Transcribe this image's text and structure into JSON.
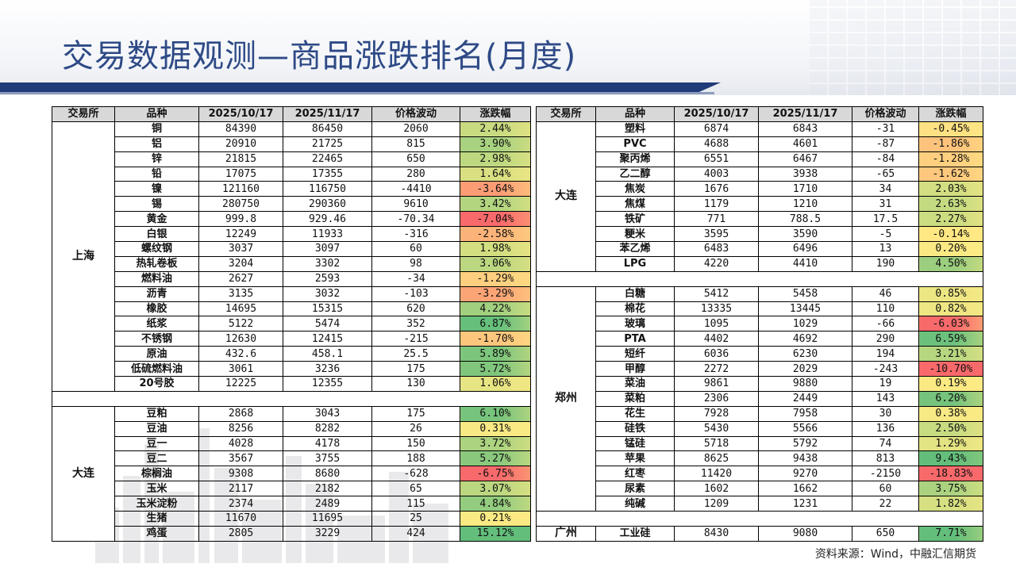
{
  "title": "交易数据观测—商品涨跌排名(月度)",
  "source": "资料来源：Wind，中融汇信期货",
  "colors": {
    "title": "#2e4a86",
    "bar": "#1f3b78",
    "header_bg": "#d8d8d8",
    "up": "#63be7b",
    "flat": "#ffeb84",
    "down": "#f8696b"
  },
  "headers": [
    "交易所",
    "品种",
    "2025/10/17",
    "2025/11/17",
    "价格波动",
    "涨跌幅"
  ],
  "left_groups": [
    {
      "exchange": "上海",
      "rows": [
        {
          "name": "铜",
          "d1": "84390",
          "d2": "86450",
          "chg": "2060",
          "pct": "2.44%",
          "v": 2.44
        },
        {
          "name": "铝",
          "d1": "20910",
          "d2": "21725",
          "chg": "815",
          "pct": "3.90%",
          "v": 3.9
        },
        {
          "name": "锌",
          "d1": "21815",
          "d2": "22465",
          "chg": "650",
          "pct": "2.98%",
          "v": 2.98
        },
        {
          "name": "铅",
          "d1": "17075",
          "d2": "17355",
          "chg": "280",
          "pct": "1.64%",
          "v": 1.64
        },
        {
          "name": "镍",
          "d1": "121160",
          "d2": "116750",
          "chg": "-4410",
          "pct": "-3.64%",
          "v": -3.64
        },
        {
          "name": "锡",
          "d1": "280750",
          "d2": "290360",
          "chg": "9610",
          "pct": "3.42%",
          "v": 3.42
        },
        {
          "name": "黄金",
          "d1": "999.8",
          "d2": "929.46",
          "chg": "-70.34",
          "pct": "-7.04%",
          "v": -7.04
        },
        {
          "name": "白银",
          "d1": "12249",
          "d2": "11933",
          "chg": "-316",
          "pct": "-2.58%",
          "v": -2.58
        },
        {
          "name": "螺纹钢",
          "d1": "3037",
          "d2": "3097",
          "chg": "60",
          "pct": "1.98%",
          "v": 1.98
        },
        {
          "name": "热轧卷板",
          "d1": "3204",
          "d2": "3302",
          "chg": "98",
          "pct": "3.06%",
          "v": 3.06
        },
        {
          "name": "燃料油",
          "d1": "2627",
          "d2": "2593",
          "chg": "-34",
          "pct": "-1.29%",
          "v": -1.29
        },
        {
          "name": "沥青",
          "d1": "3135",
          "d2": "3032",
          "chg": "-103",
          "pct": "-3.29%",
          "v": -3.29
        },
        {
          "name": "橡胶",
          "d1": "14695",
          "d2": "15315",
          "chg": "620",
          "pct": "4.22%",
          "v": 4.22
        },
        {
          "name": "纸浆",
          "d1": "5122",
          "d2": "5474",
          "chg": "352",
          "pct": "6.87%",
          "v": 6.87
        },
        {
          "name": "不锈钢",
          "d1": "12630",
          "d2": "12415",
          "chg": "-215",
          "pct": "-1.70%",
          "v": -1.7
        },
        {
          "name": "原油",
          "d1": "432.6",
          "d2": "458.1",
          "chg": "25.5",
          "pct": "5.89%",
          "v": 5.89
        },
        {
          "name": "低硫燃料油",
          "d1": "3061",
          "d2": "3236",
          "chg": "175",
          "pct": "5.72%",
          "v": 5.72
        },
        {
          "name": "20号胶",
          "d1": "12225",
          "d2": "12355",
          "chg": "130",
          "pct": "1.06%",
          "v": 1.06
        }
      ]
    },
    {
      "exchange": "大连",
      "rows": [
        {
          "name": "豆粕",
          "d1": "2868",
          "d2": "3043",
          "chg": "175",
          "pct": "6.10%",
          "v": 6.1
        },
        {
          "name": "豆油",
          "d1": "8256",
          "d2": "8282",
          "chg": "26",
          "pct": "0.31%",
          "v": 0.31
        },
        {
          "name": "豆一",
          "d1": "4028",
          "d2": "4178",
          "chg": "150",
          "pct": "3.72%",
          "v": 3.72
        },
        {
          "name": "豆二",
          "d1": "3567",
          "d2": "3755",
          "chg": "188",
          "pct": "5.27%",
          "v": 5.27
        },
        {
          "name": "棕榈油",
          "d1": "9308",
          "d2": "8680",
          "chg": "-628",
          "pct": "-6.75%",
          "v": -6.75
        },
        {
          "name": "玉米",
          "d1": "2117",
          "d2": "2182",
          "chg": "65",
          "pct": "3.07%",
          "v": 3.07
        },
        {
          "name": "玉米淀粉",
          "d1": "2374",
          "d2": "2489",
          "chg": "115",
          "pct": "4.84%",
          "v": 4.84
        },
        {
          "name": "生猪",
          "d1": "11670",
          "d2": "11695",
          "chg": "25",
          "pct": "0.21%",
          "v": 0.21
        },
        {
          "name": "鸡蛋",
          "d1": "2805",
          "d2": "3229",
          "chg": "424",
          "pct": "15.12%",
          "v": 15.12
        }
      ]
    }
  ],
  "right_groups": [
    {
      "exchange": "大连",
      "rows": [
        {
          "name": "塑料",
          "d1": "6874",
          "d2": "6843",
          "chg": "-31",
          "pct": "-0.45%",
          "v": -0.45
        },
        {
          "name": "PVC",
          "d1": "4688",
          "d2": "4601",
          "chg": "-87",
          "pct": "-1.86%",
          "v": -1.86
        },
        {
          "name": "聚丙烯",
          "d1": "6551",
          "d2": "6467",
          "chg": "-84",
          "pct": "-1.28%",
          "v": -1.28
        },
        {
          "name": "乙二醇",
          "d1": "4003",
          "d2": "3938",
          "chg": "-65",
          "pct": "-1.62%",
          "v": -1.62
        },
        {
          "name": "焦炭",
          "d1": "1676",
          "d2": "1710",
          "chg": "34",
          "pct": "2.03%",
          "v": 2.03
        },
        {
          "name": "焦煤",
          "d1": "1179",
          "d2": "1210",
          "chg": "31",
          "pct": "2.63%",
          "v": 2.63
        },
        {
          "name": "铁矿",
          "d1": "771",
          "d2": "788.5",
          "chg": "17.5",
          "pct": "2.27%",
          "v": 2.27
        },
        {
          "name": "粳米",
          "d1": "3595",
          "d2": "3590",
          "chg": "-5",
          "pct": "-0.14%",
          "v": -0.14
        },
        {
          "name": "苯乙烯",
          "d1": "6483",
          "d2": "6496",
          "chg": "13",
          "pct": "0.20%",
          "v": 0.2
        },
        {
          "name": "LPG",
          "d1": "4220",
          "d2": "4410",
          "chg": "190",
          "pct": "4.50%",
          "v": 4.5
        }
      ]
    },
    {
      "exchange": "郑州",
      "rows": [
        {
          "name": "白糖",
          "d1": "5412",
          "d2": "5458",
          "chg": "46",
          "pct": "0.85%",
          "v": 0.85
        },
        {
          "name": "棉花",
          "d1": "13335",
          "d2": "13445",
          "chg": "110",
          "pct": "0.82%",
          "v": 0.82
        },
        {
          "name": "玻璃",
          "d1": "1095",
          "d2": "1029",
          "chg": "-66",
          "pct": "-6.03%",
          "v": -6.03
        },
        {
          "name": "PTA",
          "d1": "4402",
          "d2": "4692",
          "chg": "290",
          "pct": "6.59%",
          "v": 6.59
        },
        {
          "name": "短纤",
          "d1": "6036",
          "d2": "6230",
          "chg": "194",
          "pct": "3.21%",
          "v": 3.21
        },
        {
          "name": "甲醇",
          "d1": "2272",
          "d2": "2029",
          "chg": "-243",
          "pct": "-10.70%",
          "v": -10.7
        },
        {
          "name": "菜油",
          "d1": "9861",
          "d2": "9880",
          "chg": "19",
          "pct": "0.19%",
          "v": 0.19
        },
        {
          "name": "菜粕",
          "d1": "2306",
          "d2": "2449",
          "chg": "143",
          "pct": "6.20%",
          "v": 6.2
        },
        {
          "name": "花生",
          "d1": "7928",
          "d2": "7958",
          "chg": "30",
          "pct": "0.38%",
          "v": 0.38
        },
        {
          "name": "硅铁",
          "d1": "5430",
          "d2": "5566",
          "chg": "136",
          "pct": "2.50%",
          "v": 2.5
        },
        {
          "name": "锰硅",
          "d1": "5718",
          "d2": "5792",
          "chg": "74",
          "pct": "1.29%",
          "v": 1.29
        },
        {
          "name": "苹果",
          "d1": "8625",
          "d2": "9438",
          "chg": "813",
          "pct": "9.43%",
          "v": 9.43
        },
        {
          "name": "红枣",
          "d1": "11420",
          "d2": "9270",
          "chg": "-2150",
          "pct": "-18.83%",
          "v": -18.83
        },
        {
          "name": "尿素",
          "d1": "1602",
          "d2": "1662",
          "chg": "60",
          "pct": "3.75%",
          "v": 3.75
        },
        {
          "name": "纯碱",
          "d1": "1209",
          "d2": "1231",
          "chg": "22",
          "pct": "1.82%",
          "v": 1.82
        }
      ]
    },
    {
      "exchange": "广州",
      "rows": [
        {
          "name": "工业硅",
          "d1": "8430",
          "d2": "9080",
          "chg": "650",
          "pct": "7.71%",
          "v": 7.71
        }
      ]
    }
  ]
}
